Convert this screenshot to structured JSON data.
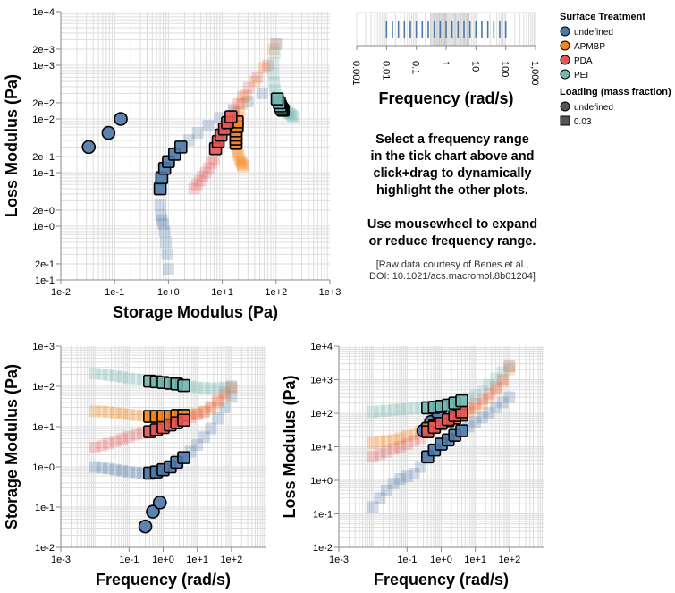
{
  "instructions": {
    "line1": "Select a frequency range",
    "line2": "in the tick chart above and",
    "line3": "click+drag to dynamically",
    "line4": "highlight the other plots.",
    "line5": "Use mousewheel to expand",
    "line6": "or reduce frequency range."
  },
  "credit": {
    "line1": "[Raw data courtesy of Benes et al.,",
    "line2": "DOI: 10.1021/acs.macromol.8b01204]"
  },
  "legend": {
    "treatment_title": "Surface Treatment",
    "treatments": [
      {
        "label": "undefined",
        "color": "#4c78a8"
      },
      {
        "label": "APMBP",
        "color": "#f58518"
      },
      {
        "label": "PDA",
        "color": "#e45756"
      },
      {
        "label": "PEI",
        "color": "#72b7b2"
      }
    ],
    "loading_title": "Loading (mass fraction)",
    "loadings": [
      {
        "label": "undefined",
        "shape": "circle"
      },
      {
        "label": "0.03",
        "shape": "square"
      }
    ]
  },
  "selection": {
    "freq_min": 0.3,
    "freq_max": 6
  },
  "chart_data": [
    {
      "id": "modulus-scatter",
      "type": "scatter",
      "xlabel": "Storage Modulus (Pa)",
      "ylabel": "Loss Modulus (Pa)",
      "x_scale": "log",
      "y_scale": "log",
      "xlim": [
        0.01,
        1000
      ],
      "ylim": [
        0.1,
        10000
      ],
      "x_ticks": [
        "1e-2",
        "1e-1",
        "1e+0",
        "1e+1",
        "1e+2",
        "1e+3"
      ],
      "y_ticks": [
        "1e-1",
        "2e-1",
        "1e+0",
        "2e+0",
        "1e+1",
        "2e+1",
        "1e+2",
        "2e+2",
        "1e+3",
        "2e+3",
        "1e+4"
      ],
      "grid": true
    },
    {
      "id": "frequency-ticks",
      "type": "tick",
      "xlabel": "Frequency (rad/s)",
      "x_scale": "log",
      "xlim": [
        0.001,
        1000
      ],
      "x_ticks": [
        "0.001",
        "0.01",
        "0.1",
        "1",
        "10",
        "100",
        "1,000"
      ],
      "frequencies": [
        0.01,
        0.0158,
        0.0251,
        0.0398,
        0.0631,
        0.1,
        0.158,
        0.251,
        0.398,
        0.631,
        1,
        1.58,
        2.51,
        3.98,
        6.31,
        10,
        15.8,
        25.1,
        39.8,
        63.1,
        100
      ]
    },
    {
      "id": "storage-vs-frequency",
      "type": "scatter",
      "xlabel": "Frequency (rad/s)",
      "ylabel": "Storage Modulus (Pa)",
      "x_scale": "log",
      "y_scale": "log",
      "xlim": [
        0.001,
        1000
      ],
      "ylim": [
        0.01,
        1000
      ],
      "x_ticks": [
        "1e-3",
        "1e-1",
        "1e+0",
        "1e+1",
        "1e+2"
      ],
      "y_ticks": [
        "1e-2",
        "1e-1",
        "1e+0",
        "1e+1",
        "1e+2",
        "1e+3"
      ],
      "grid": true
    },
    {
      "id": "loss-vs-frequency",
      "type": "scatter",
      "xlabel": "Frequency (rad/s)",
      "ylabel": "Loss Modulus (Pa)",
      "x_scale": "log",
      "y_scale": "log",
      "xlim": [
        0.001,
        1000
      ],
      "ylim": [
        0.01,
        10000
      ],
      "x_ticks": [
        "1e-3",
        "1e-1",
        "1e+0",
        "1e+1",
        "1e+2"
      ],
      "y_ticks": [
        "1e-2",
        "1e-1",
        "1e+0",
        "1e+1",
        "1e+2",
        "1e+3",
        "1e+4"
      ],
      "grid": true
    }
  ],
  "samples": [
    {
      "treatment": "undefined",
      "loading": "undefined",
      "points": [
        [
          0.3,
          0.033,
          30
        ],
        [
          0.5,
          0.077,
          55
        ],
        [
          0.8,
          0.13,
          100
        ]
      ]
    },
    {
      "treatment": "undefined",
      "loading": "0.03",
      "points": [
        [
          0.01,
          1.0,
          0.16
        ],
        [
          0.016,
          0.95,
          0.3
        ],
        [
          0.025,
          0.9,
          0.5
        ],
        [
          0.04,
          0.85,
          0.8
        ],
        [
          0.063,
          0.8,
          1.1
        ],
        [
          0.1,
          0.75,
          1.3
        ],
        [
          0.16,
          0.72,
          1.6
        ],
        [
          0.25,
          0.7,
          2.5
        ],
        [
          0.4,
          0.7,
          5
        ],
        [
          0.63,
          0.75,
          8
        ],
        [
          1,
          0.85,
          12
        ],
        [
          1.6,
          1.0,
          16
        ],
        [
          2.5,
          1.3,
          22
        ],
        [
          4,
          1.7,
          30
        ],
        [
          6.3,
          2.4,
          40
        ],
        [
          10,
          3.5,
          55
        ],
        [
          16,
          5.5,
          75
        ],
        [
          25,
          9,
          105
        ],
        [
          40,
          16,
          150
        ],
        [
          63,
          30,
          210
        ],
        [
          100,
          55,
          300
        ]
      ]
    },
    {
      "treatment": "APMBP",
      "loading": "0.03",
      "points": [
        [
          0.01,
          24,
          13
        ],
        [
          0.016,
          24,
          14
        ],
        [
          0.025,
          23,
          15
        ],
        [
          0.04,
          22,
          16
        ],
        [
          0.063,
          21,
          18
        ],
        [
          0.1,
          20,
          21
        ],
        [
          0.16,
          19,
          24
        ],
        [
          0.25,
          19,
          29
        ],
        [
          0.4,
          18,
          35
        ],
        [
          0.63,
          18,
          42
        ],
        [
          1,
          18,
          50
        ],
        [
          1.6,
          18,
          60
        ],
        [
          2.5,
          19,
          72
        ],
        [
          4,
          19,
          88
        ],
        [
          6.3,
          20,
          108
        ],
        [
          10,
          21,
          140
        ],
        [
          16,
          23,
          190
        ],
        [
          25,
          28,
          280
        ],
        [
          40,
          40,
          500
        ],
        [
          63,
          60,
          900
        ],
        [
          100,
          90,
          2000
        ]
      ]
    },
    {
      "treatment": "PDA",
      "loading": "0.03",
      "points": [
        [
          0.01,
          3.0,
          5
        ],
        [
          0.016,
          3.4,
          6
        ],
        [
          0.025,
          3.8,
          7
        ],
        [
          0.04,
          4.3,
          8.5
        ],
        [
          0.063,
          4.9,
          10
        ],
        [
          0.1,
          5.6,
          12
        ],
        [
          0.16,
          6.3,
          15
        ],
        [
          0.25,
          7.0,
          18
        ],
        [
          0.4,
          7.5,
          28
        ],
        [
          0.63,
          8.4,
          38
        ],
        [
          1,
          9.5,
          50
        ],
        [
          1.6,
          11,
          65
        ],
        [
          2.5,
          12.5,
          85
        ],
        [
          4,
          14.5,
          110
        ],
        [
          6.3,
          17,
          140
        ],
        [
          10,
          20,
          190
        ],
        [
          16,
          24,
          260
        ],
        [
          25,
          31,
          380
        ],
        [
          40,
          45,
          600
        ],
        [
          63,
          70,
          1000
        ],
        [
          100,
          100,
          2500
        ]
      ]
    },
    {
      "treatment": "PEI",
      "loading": "0.03",
      "points": [
        [
          0.01,
          210,
          110
        ],
        [
          0.016,
          200,
          115
        ],
        [
          0.025,
          190,
          120
        ],
        [
          0.04,
          180,
          125
        ],
        [
          0.063,
          170,
          130
        ],
        [
          0.1,
          160,
          135
        ],
        [
          0.16,
          150,
          140
        ],
        [
          0.25,
          145,
          140
        ],
        [
          0.4,
          135,
          145
        ],
        [
          0.63,
          130,
          150
        ],
        [
          1,
          125,
          160
        ],
        [
          1.6,
          120,
          175
        ],
        [
          2.5,
          115,
          200
        ],
        [
          4,
          105,
          235
        ],
        [
          6.3,
          100,
          280
        ],
        [
          10,
          95,
          350
        ],
        [
          16,
          92,
          480
        ],
        [
          25,
          90,
          700
        ],
        [
          40,
          90,
          1100
        ],
        [
          63,
          95,
          1700
        ],
        [
          100,
          100,
          2500
        ]
      ]
    }
  ]
}
